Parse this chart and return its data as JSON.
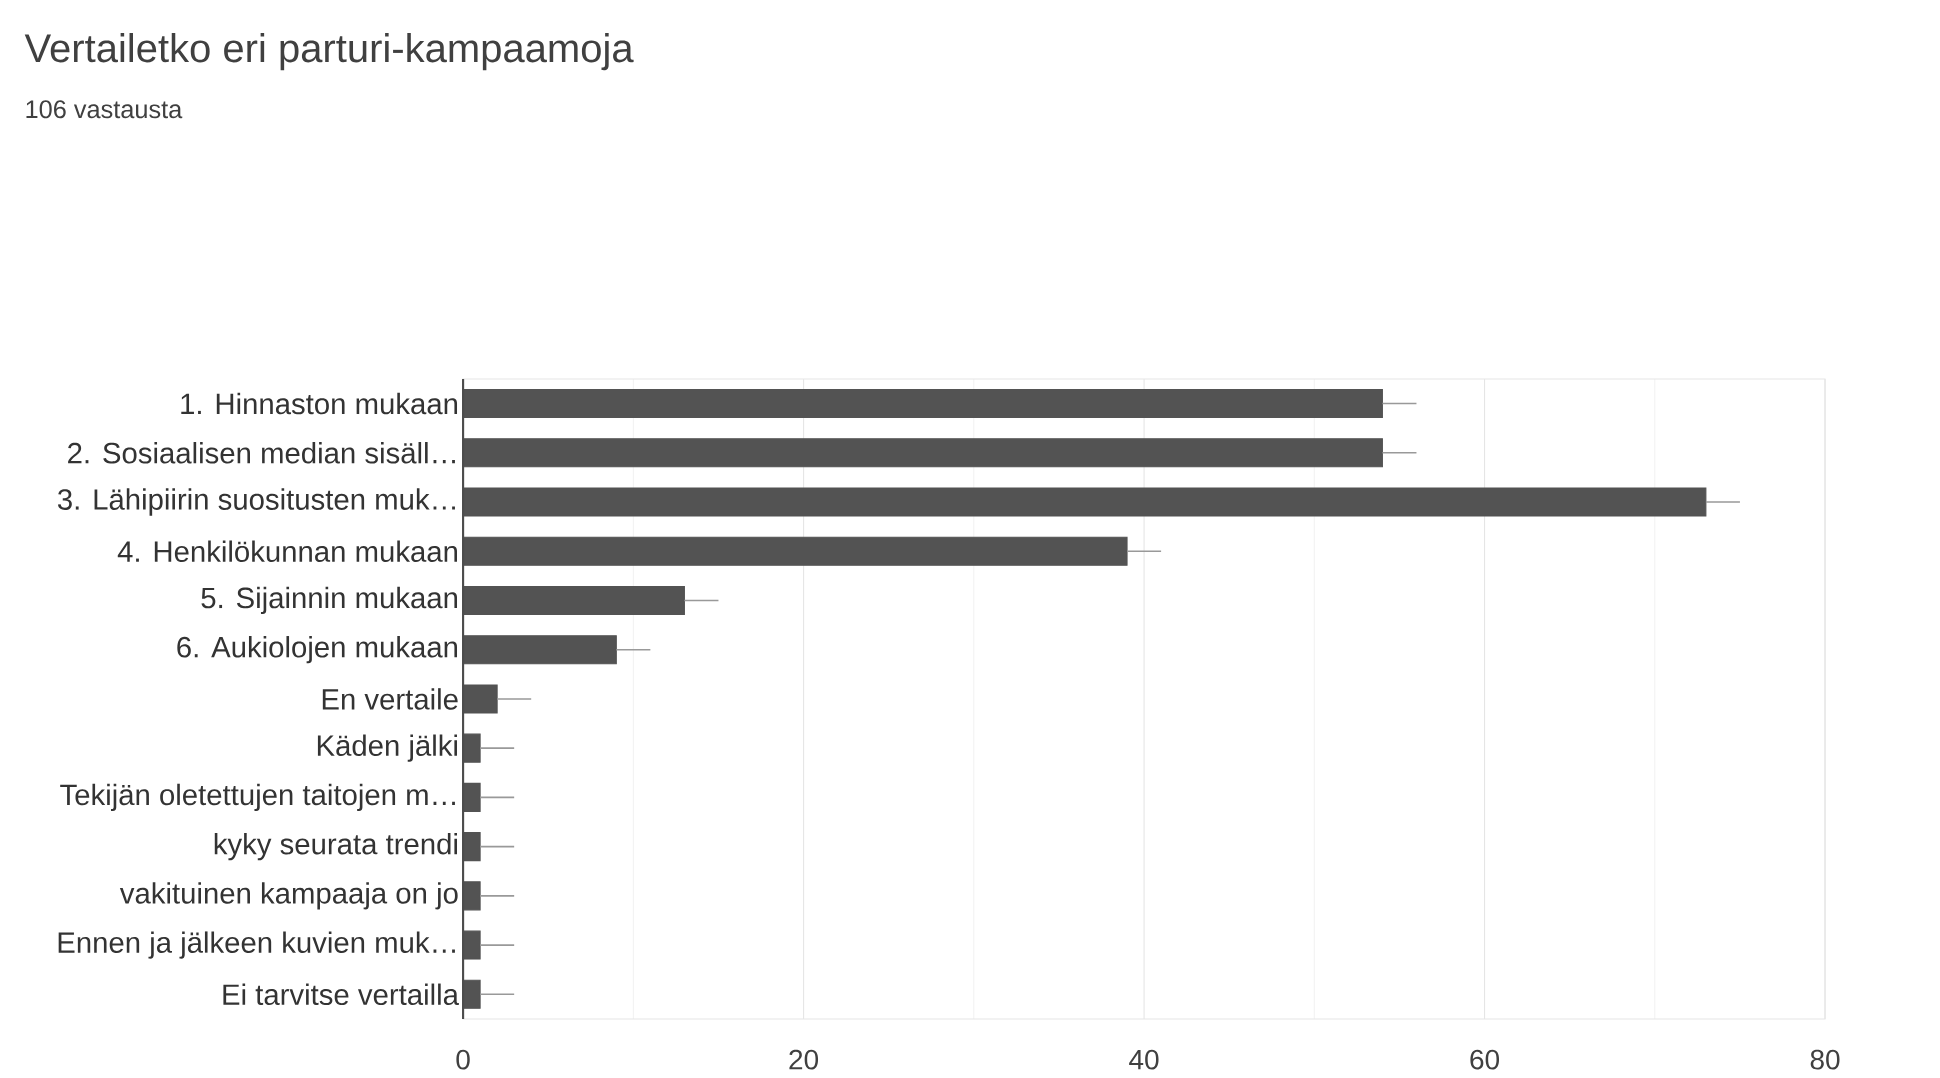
{
  "chart_data": {
    "type": "bar",
    "orientation": "horizontal",
    "title": "Vertailetko eri parturi-kampaamoja",
    "subtitle": "106 vastausta",
    "categories": [
      "1. Hinnaston mukaan",
      "2. Sosiaalisen median sisäll…",
      "3. Lähipiirin suositusten muk…",
      "4. Henkilökunnan mukaan",
      "5. Sijainnin mukaan",
      "6. Aukiolojen mukaan",
      "En vertaile",
      "Käden jälki",
      "Tekijän oletettujen taitojen m…",
      "kyky seurata trendi",
      "vakituinen kampaaja on jo",
      "Ennen ja jälkeen kuvien muk…",
      "Ei tarvitse vertailla"
    ],
    "values": [
      54,
      54,
      73,
      39,
      13,
      9,
      2,
      1,
      1,
      1,
      1,
      1,
      1
    ],
    "errors": [
      [
        54,
        56
      ],
      [
        54,
        56
      ],
      [
        73,
        75
      ],
      [
        39,
        41
      ],
      [
        13,
        15
      ],
      [
        9,
        11
      ],
      [
        2,
        4
      ],
      [
        1,
        3
      ],
      [
        1,
        3
      ],
      [
        1,
        3
      ],
      [
        1,
        3
      ],
      [
        1,
        3
      ],
      [
        1,
        3
      ]
    ],
    "color": "#535353",
    "xlim": [
      0,
      80
    ],
    "xticks": [
      0,
      20,
      40,
      60,
      80
    ],
    "grid": "x"
  }
}
